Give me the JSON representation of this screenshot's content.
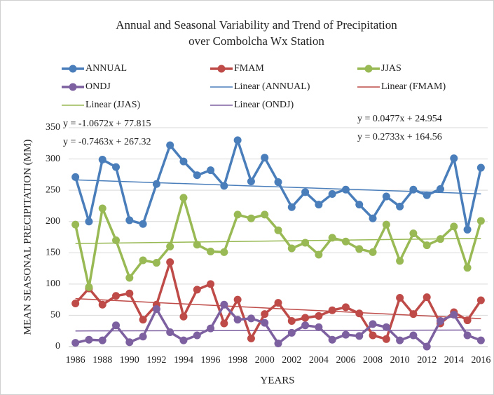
{
  "chart_data": {
    "type": "line",
    "title": [
      "Annual and Seasonal Variability and Trend of Precipitation",
      "over Combolcha Wx Station"
    ],
    "xlabel": "YEARS",
    "ylabel": "MEAN SEASONAL PRECIPITATION (MM)",
    "categories": [
      "1986",
      null,
      "1988",
      null,
      "1990",
      null,
      "1992",
      null,
      "1994",
      null,
      "1996",
      null,
      "1998",
      null,
      "2000",
      null,
      "2002",
      null,
      "2004",
      null,
      "2006",
      null,
      "2008",
      null,
      "2010",
      null,
      "2012",
      null,
      "2014",
      null,
      "2016"
    ],
    "ylim": [
      0,
      350
    ],
    "yticks": [
      0,
      50,
      100,
      150,
      200,
      250,
      300,
      350
    ],
    "grid": true,
    "series": [
      {
        "name": "ANNUAL",
        "color": "#4a7ebb",
        "values": [
          271,
          200,
          299,
          287,
          202,
          196,
          260,
          322,
          296,
          274,
          282,
          257,
          330,
          264,
          302,
          263,
          223,
          247,
          227,
          244,
          251,
          227,
          205,
          240,
          224,
          251,
          242,
          252,
          301,
          187,
          286
        ]
      },
      {
        "name": "FMAM",
        "color": "#be4b48",
        "values": [
          69,
          93,
          67,
          81,
          85,
          43,
          67,
          135,
          48,
          91,
          100,
          37,
          75,
          13,
          52,
          70,
          41,
          46,
          49,
          58,
          63,
          53,
          18,
          12,
          78,
          52,
          79,
          37,
          55,
          42,
          74
        ]
      },
      {
        "name": "JJAS",
        "color": "#98b954",
        "values": [
          195,
          95,
          221,
          170,
          110,
          138,
          134,
          160,
          238,
          163,
          152,
          151,
          211,
          205,
          211,
          186,
          157,
          166,
          147,
          174,
          168,
          156,
          151,
          195,
          137,
          181,
          162,
          172,
          192,
          126,
          201
        ]
      },
      {
        "name": "ONDJ",
        "color": "#7d60a0",
        "values": [
          6,
          11,
          10,
          34,
          7,
          16,
          60,
          23,
          10,
          18,
          29,
          67,
          43,
          45,
          38,
          5,
          22,
          34,
          31,
          11,
          19,
          17,
          36,
          31,
          10,
          18,
          0,
          41,
          51,
          18,
          10
        ]
      }
    ],
    "trendlines": [
      {
        "name": "Linear (ANNUAL)",
        "color": "#4a7ebb",
        "slope": -0.7463,
        "intercept": 267.32,
        "equation": "y = -0.7463x + 267.32"
      },
      {
        "name": "Linear (FMAM)",
        "color": "#be4b48",
        "slope": -1.0672,
        "intercept": 77.815,
        "equation": "y = -1.0672x + 77.815"
      },
      {
        "name": "Linear (JJAS)",
        "color": "#98b954",
        "slope": 0.2733,
        "intercept": 164.56,
        "equation": "y = 0.2733x + 164.56"
      },
      {
        "name": "Linear (ONDJ)",
        "color": "#7d60a0",
        "slope": 0.0477,
        "intercept": 24.954,
        "equation": "y = 0.0477x + 24.954"
      }
    ]
  }
}
